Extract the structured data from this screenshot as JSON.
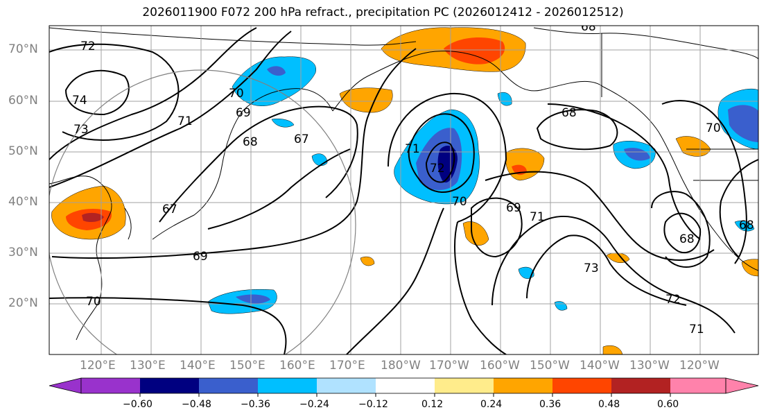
{
  "title": "2026011900 F072 200 hPa refract., precipitation PC (2026012412 - 2026012512)",
  "lat_labels": [
    "70°N",
    "60°N",
    "50°N",
    "40°N",
    "30°N",
    "20°N"
  ],
  "lon_labels": [
    "120°E",
    "130°E",
    "140°E",
    "150°E",
    "160°E",
    "170°E",
    "180°W",
    "170°W",
    "160°W",
    "150°W",
    "140°W",
    "130°W",
    "120°W"
  ],
  "contour_labels": [
    "72",
    "74",
    "73",
    "71",
    "70",
    "69",
    "68",
    "67",
    "68",
    "67",
    "69",
    "70",
    "72",
    "71",
    "70",
    "69",
    "71",
    "68",
    "73",
    "72",
    "71",
    "68",
    "70",
    "68"
  ],
  "colorbar": {
    "ticks": [
      "−0.60",
      "−0.48",
      "−0.36",
      "−0.24",
      "−0.12",
      "0.12",
      "0.24",
      "0.36",
      "0.48",
      "0.60"
    ],
    "colors": [
      "#9932cc",
      "#000080",
      "#3a5fcd",
      "#00bfff",
      "#b0e2ff",
      "#ffffff",
      "#ffec8b",
      "#ffa500",
      "#ff4500",
      "#b22222",
      "#ff82ab"
    ],
    "extend": "both"
  },
  "colors": {
    "gridline": "#a0a0a0",
    "contour": "#000000",
    "axis_label": "#808080"
  }
}
